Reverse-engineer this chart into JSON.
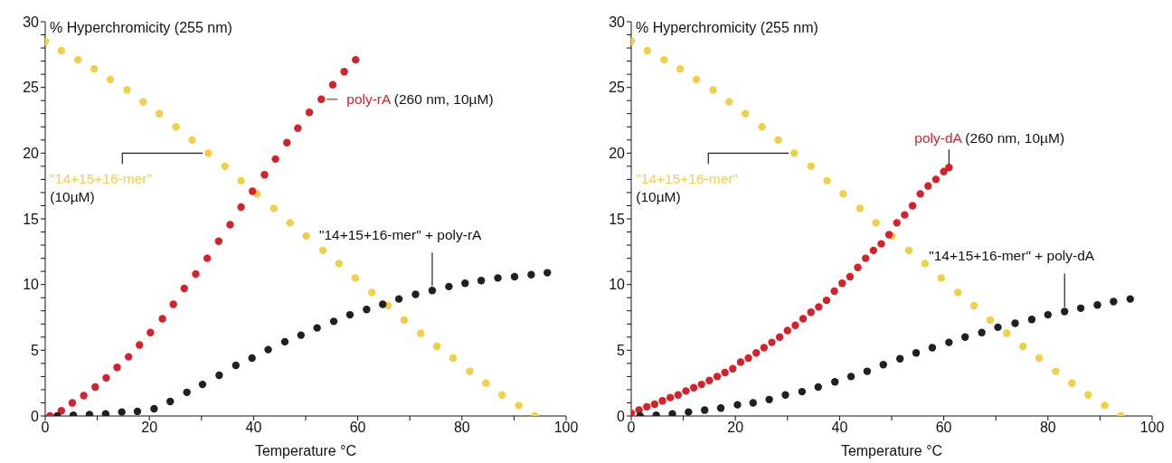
{
  "chart_data": [
    {
      "type": "scatter",
      "ylabel": "% Hyperchromicity (255 nm)",
      "xlabel": "Temperature °C",
      "marker": "circle",
      "xlim": [
        0,
        100
      ],
      "ylim": [
        0,
        30
      ],
      "xticks": [
        0,
        {
          "value": 10,
          "label": null
        },
        20,
        {
          "value": 30,
          "label": null
        },
        40,
        {
          "value": 50,
          "label": null
        },
        60,
        {
          "value": 70,
          "label": null
        },
        80,
        {
          "value": 90,
          "label": null
        },
        100
      ],
      "yticks": [
        0,
        {
          "value": 1,
          "label": null
        },
        {
          "value": 2,
          "label": null
        },
        {
          "value": 3,
          "label": null
        },
        {
          "value": 4,
          "label": null
        },
        5,
        {
          "value": 6,
          "label": null
        },
        {
          "value": 7,
          "label": null
        },
        {
          "value": 8,
          "label": null
        },
        {
          "value": 9,
          "label": null
        },
        10,
        {
          "value": 11,
          "label": null
        },
        {
          "value": 12,
          "label": null
        },
        {
          "value": 13,
          "label": null
        },
        {
          "value": 14,
          "label": null
        },
        15,
        {
          "value": 16,
          "label": null
        },
        {
          "value": 17,
          "label": null
        },
        {
          "value": 18,
          "label": null
        },
        {
          "value": 19,
          "label": null
        },
        20,
        {
          "value": 21,
          "label": null
        },
        {
          "value": 22,
          "label": null
        },
        {
          "value": 23,
          "label": null
        },
        {
          "value": 24,
          "label": null
        },
        25,
        {
          "value": 26,
          "label": null
        },
        {
          "value": 27,
          "label": null
        },
        {
          "value": 28,
          "label": null
        },
        {
          "value": 29,
          "label": null
        },
        30
      ],
      "series": [
        {
          "name": "\"14+15+16-mer\"",
          "color": "#f2cf45",
          "x": [
            0,
            3.1,
            6.3,
            9.4,
            12.5,
            15.7,
            18.8,
            21.9,
            25.1,
            28.2,
            31.3,
            34.5,
            37.6,
            40.7,
            43.9,
            47,
            50.1,
            53.3,
            56.4,
            59.5,
            62.7,
            65.8,
            68.9,
            72.1,
            75.2,
            78.3,
            81.5,
            84.6,
            87.7,
            90.9,
            94
          ],
          "values": [
            28.5,
            27.8,
            27.1,
            26.4,
            25.6,
            24.8,
            23.9,
            23.0,
            22.0,
            21.0,
            20.0,
            19.0,
            17.9,
            16.9,
            15.8,
            14.7,
            13.7,
            12.6,
            11.6,
            10.5,
            9.4,
            8.4,
            7.3,
            6.3,
            5.3,
            4.4,
            3.4,
            2.5,
            1.6,
            0.8,
            0
          ]
        },
        {
          "name": "poly-rA",
          "color": "#d7202a",
          "x": [
            0.9,
            3.1,
            5.2,
            7.4,
            9.6,
            11.7,
            13.8,
            16.0,
            18.1,
            20.2,
            22.5,
            24.6,
            26.7,
            28.9,
            31.1,
            33.3,
            35.5,
            37.6,
            39.8,
            42.1,
            44.2,
            46.4,
            48.5,
            50.7,
            53.0,
            55.2,
            57.4,
            59.6
          ],
          "values": [
            0,
            0.4,
            1.0,
            1.55,
            2.2,
            2.9,
            3.7,
            4.5,
            5.4,
            6.35,
            7.4,
            8.5,
            9.7,
            10.8,
            12.0,
            13.3,
            14.55,
            15.9,
            17.1,
            18.35,
            19.55,
            20.8,
            21.9,
            23.1,
            24.1,
            25.2,
            26.2,
            27.1
          ]
        },
        {
          "name": "\"14+15+16-mer\" + poly-rA",
          "color": "#231f20",
          "x": [
            2.3,
            5.4,
            8.5,
            11.6,
            14.7,
            17.7,
            20.9,
            24.0,
            27.2,
            30.2,
            33.4,
            36.6,
            39.7,
            42.8,
            46.0,
            49.1,
            52.2,
            55.4,
            58.5,
            61.7,
            64.8,
            67.9,
            71.1,
            74.3,
            77.5,
            80.6,
            83.7,
            86.9,
            90.1,
            93.3,
            96.4
          ],
          "values": [
            0,
            0.05,
            0.1,
            0.15,
            0.3,
            0.35,
            0.55,
            1.1,
            1.8,
            2.4,
            3.1,
            3.85,
            4.4,
            5.05,
            5.65,
            6.15,
            6.7,
            7.2,
            7.7,
            8.1,
            8.5,
            8.9,
            9.25,
            9.55,
            9.85,
            10.1,
            10.3,
            10.5,
            10.6,
            10.75,
            10.9
          ]
        }
      ],
      "annotations": [
        "(10µM)",
        "(260 nm, 10µM)"
      ]
    },
    {
      "type": "scatter",
      "ylabel": "% Hyperchromicity (255 nm)",
      "xlabel": "Temperature °C",
      "marker": "circle",
      "xlim": [
        0,
        100
      ],
      "ylim": [
        0,
        30
      ],
      "xticks": [
        0,
        {
          "value": 10,
          "label": null
        },
        20,
        {
          "value": 30,
          "label": null
        },
        40,
        {
          "value": 50,
          "label": null
        },
        60,
        {
          "value": 70,
          "label": null
        },
        80,
        {
          "value": 90,
          "label": null
        },
        100
      ],
      "yticks": [
        0,
        {
          "value": 1,
          "label": null
        },
        {
          "value": 2,
          "label": null
        },
        {
          "value": 3,
          "label": null
        },
        {
          "value": 4,
          "label": null
        },
        5,
        {
          "value": 6,
          "label": null
        },
        {
          "value": 7,
          "label": null
        },
        {
          "value": 8,
          "label": null
        },
        {
          "value": 9,
          "label": null
        },
        10,
        {
          "value": 11,
          "label": null
        },
        {
          "value": 12,
          "label": null
        },
        {
          "value": 13,
          "label": null
        },
        {
          "value": 14,
          "label": null
        },
        15,
        {
          "value": 16,
          "label": null
        },
        {
          "value": 17,
          "label": null
        },
        {
          "value": 18,
          "label": null
        },
        {
          "value": 19,
          "label": null
        },
        20,
        {
          "value": 21,
          "label": null
        },
        {
          "value": 22,
          "label": null
        },
        {
          "value": 23,
          "label": null
        },
        {
          "value": 24,
          "label": null
        },
        25,
        {
          "value": 26,
          "label": null
        },
        {
          "value": 27,
          "label": null
        },
        {
          "value": 28,
          "label": null
        },
        {
          "value": 29,
          "label": null
        },
        30
      ],
      "series": [
        {
          "name": "\"14+15+16-mer\"",
          "color": "#f2cf45",
          "x": [
            0,
            3.1,
            6.3,
            9.4,
            12.5,
            15.7,
            18.8,
            21.9,
            25.1,
            28.2,
            31.3,
            34.5,
            37.6,
            40.7,
            43.9,
            47,
            50.1,
            53.3,
            56.4,
            59.5,
            62.7,
            65.8,
            68.9,
            72.1,
            75.2,
            78.3,
            81.5,
            84.6,
            87.7,
            90.9,
            94
          ],
          "values": [
            28.5,
            27.8,
            27.1,
            26.4,
            25.6,
            24.8,
            23.9,
            23.0,
            22.0,
            21.0,
            20.0,
            19.0,
            17.9,
            16.9,
            15.8,
            14.7,
            13.7,
            12.6,
            11.6,
            10.5,
            9.4,
            8.4,
            7.3,
            6.3,
            5.3,
            4.4,
            3.4,
            2.5,
            1.6,
            0.8,
            0
          ]
        },
        {
          "name": "poly-dA",
          "color": "#d7202a",
          "x": [
            0,
            1.5,
            3,
            4.5,
            6,
            7.5,
            9,
            10.5,
            12,
            13.5,
            15,
            16.5,
            18,
            19.5,
            21,
            22.5,
            24,
            25.5,
            27,
            28.5,
            30,
            31.5,
            33,
            34.5,
            36,
            37.5,
            39,
            40.5,
            42,
            43.5,
            45,
            46.5,
            48,
            49.5,
            51,
            52.5,
            54,
            55.5,
            57,
            58.5,
            60,
            61
          ],
          "values": [
            0.2,
            0.45,
            0.7,
            0.9,
            1.15,
            1.4,
            1.6,
            1.9,
            2.15,
            2.4,
            2.7,
            3.0,
            3.3,
            3.6,
            4.1,
            4.4,
            4.8,
            5.2,
            5.6,
            6.0,
            6.5,
            6.9,
            7.4,
            7.9,
            8.3,
            8.8,
            9.5,
            10.1,
            10.6,
            11.3,
            12.0,
            12.6,
            13.1,
            13.8,
            14.7,
            15.3,
            16.0,
            16.9,
            17.5,
            18.0,
            18.6,
            18.9
          ]
        },
        {
          "name": "\"14+15+16-mer\" + poly-dA",
          "color": "#231f20",
          "x": [
            1.7,
            4.8,
            7.9,
            11.0,
            14.1,
            17.2,
            20.4,
            23.4,
            26.5,
            29.6,
            32.8,
            35.9,
            39.1,
            42.2,
            45.3,
            48.4,
            51.6,
            54.7,
            57.8,
            61.0,
            64.1,
            67.3,
            70.4,
            73.7,
            76.9,
            80.0,
            83.2,
            86.3,
            89.5,
            92.6,
            95.8
          ],
          "values": [
            0,
            0.05,
            0.15,
            0.3,
            0.45,
            0.6,
            0.85,
            1.0,
            1.25,
            1.6,
            1.85,
            2.2,
            2.6,
            3.0,
            3.4,
            3.9,
            4.35,
            4.8,
            5.2,
            5.6,
            6.0,
            6.35,
            6.75,
            7.05,
            7.35,
            7.7,
            7.95,
            8.2,
            8.45,
            8.7,
            8.9
          ]
        }
      ],
      "annotations": [
        "(10µM)",
        "(260 nm, 10µM)"
      ]
    }
  ]
}
